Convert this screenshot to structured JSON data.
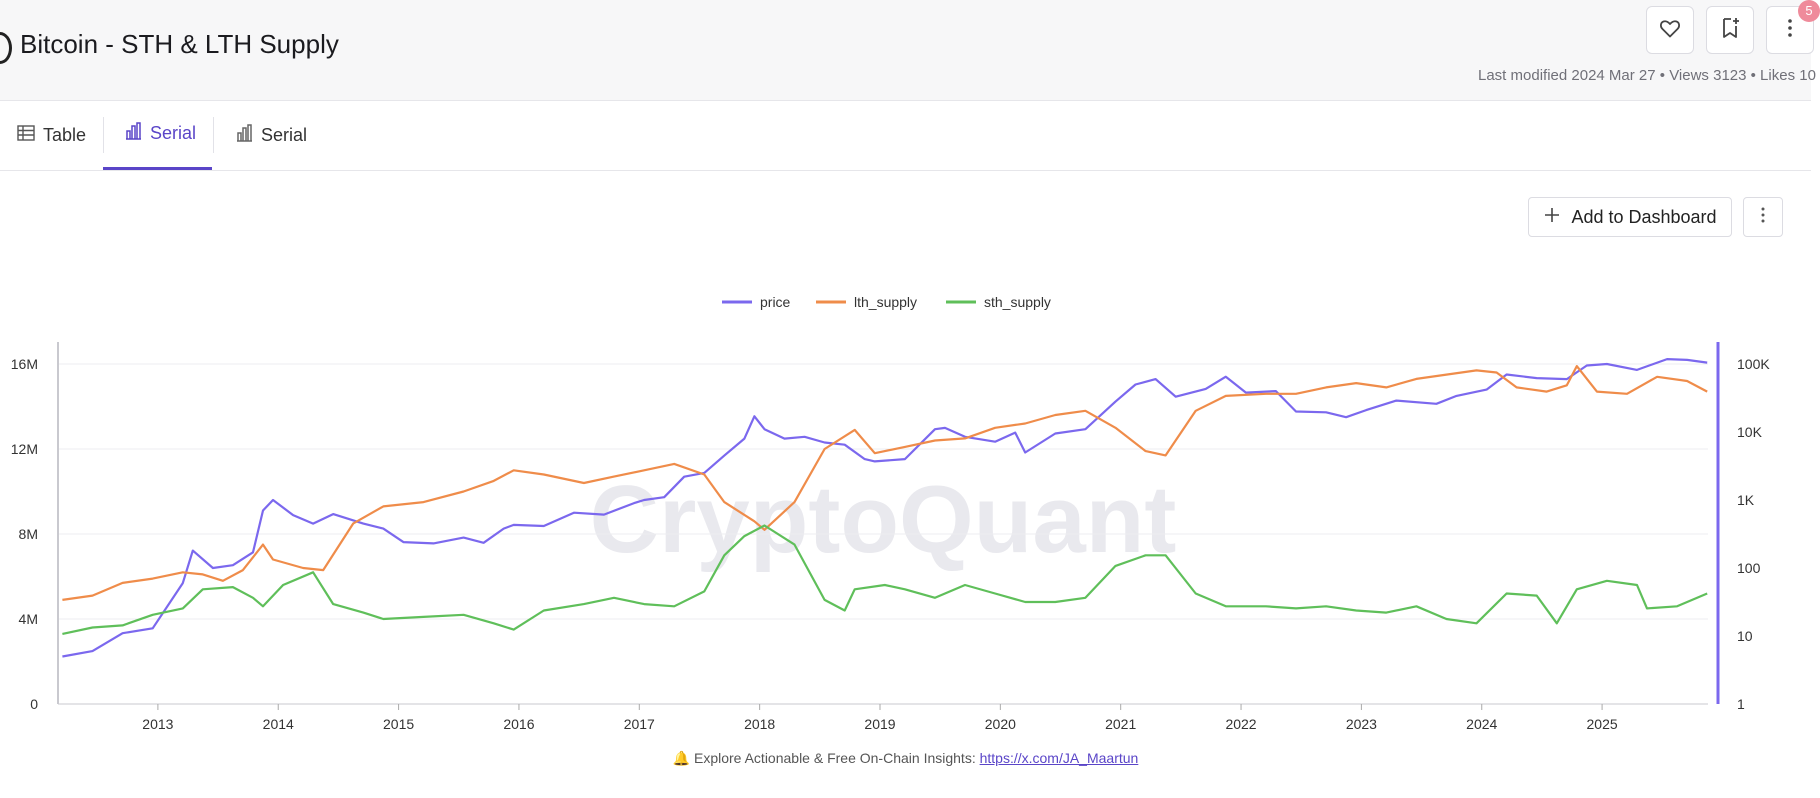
{
  "header": {
    "title": "Bitcoin - STH & LTH Supply",
    "meta": "Last modified 2024 Mar 27 • Views 3123 • Likes 10",
    "notification_count": "5",
    "icons": [
      "heart-icon",
      "bookmark-add-icon",
      "more-vertical-icon"
    ]
  },
  "tabs": [
    {
      "label": "Table",
      "icon": "table-icon",
      "active": false
    },
    {
      "label": "Serial",
      "icon": "bar-chart-icon",
      "active": true
    },
    {
      "label": "Serial",
      "icon": "bar-chart-icon",
      "active": false
    }
  ],
  "toolbar": {
    "add_label": "Add to Dashboard"
  },
  "footer": {
    "bell": "🔔",
    "text": "Explore Actionable & Free On-Chain Insights:",
    "link": "https://x.com/JA_Maartun"
  },
  "colors": {
    "price": "#7b68ee",
    "lth_supply": "#ef8c4a",
    "sth_supply": "#5fbf5a",
    "accent": "#5a45c8"
  },
  "chart_data": {
    "type": "line",
    "watermark": "CryptoQuant",
    "x_ticks": [
      "2013",
      "2014",
      "2015",
      "2016",
      "2017",
      "2018",
      "2019",
      "2020",
      "2021",
      "2022",
      "2023",
      "2024",
      "2025"
    ],
    "y_left": {
      "ticks": [
        "0",
        "4M",
        "8M",
        "12M",
        "16M"
      ],
      "range": [
        0,
        16000000
      ]
    },
    "y_right": {
      "ticks": [
        "1",
        "10",
        "100",
        "1K",
        "10K",
        "100K"
      ],
      "range": [
        1,
        100000
      ],
      "scale": "log"
    },
    "legend_position": "top-center",
    "grid": true,
    "series": [
      {
        "name": "price",
        "axis": "right",
        "points": [
          [
            "2012-03",
            5
          ],
          [
            "2012-06",
            6
          ],
          [
            "2012-09",
            11
          ],
          [
            "2012-12",
            13
          ],
          [
            "2013-03",
            60
          ],
          [
            "2013-04",
            180
          ],
          [
            "2013-06",
            100
          ],
          [
            "2013-08",
            110
          ],
          [
            "2013-10",
            170
          ],
          [
            "2013-11",
            700
          ],
          [
            "2013-12",
            1000
          ],
          [
            "2014-02",
            600
          ],
          [
            "2014-04",
            450
          ],
          [
            "2014-06",
            620
          ],
          [
            "2014-09",
            450
          ],
          [
            "2014-11",
            380
          ],
          [
            "2015-01",
            240
          ],
          [
            "2015-04",
            230
          ],
          [
            "2015-07",
            280
          ],
          [
            "2015-09",
            235
          ],
          [
            "2015-11",
            380
          ],
          [
            "2015-12",
            430
          ],
          [
            "2016-03",
            415
          ],
          [
            "2016-06",
            650
          ],
          [
            "2016-09",
            610
          ],
          [
            "2016-12",
            900
          ],
          [
            "2017-01",
            1000
          ],
          [
            "2017-03",
            1100
          ],
          [
            "2017-05",
            2200
          ],
          [
            "2017-07",
            2500
          ],
          [
            "2017-09",
            4500
          ],
          [
            "2017-11",
            8000
          ],
          [
            "2017-12",
            17000
          ],
          [
            "2018-01",
            11000
          ],
          [
            "2018-03",
            8000
          ],
          [
            "2018-05",
            8500
          ],
          [
            "2018-07",
            7000
          ],
          [
            "2018-09",
            6500
          ],
          [
            "2018-11",
            4000
          ],
          [
            "2018-12",
            3700
          ],
          [
            "2019-03",
            4000
          ],
          [
            "2019-06",
            11000
          ],
          [
            "2019-07",
            11500
          ],
          [
            "2019-09",
            8500
          ],
          [
            "2019-12",
            7200
          ],
          [
            "2020-02",
            9800
          ],
          [
            "2020-03",
            5000
          ],
          [
            "2020-06",
            9500
          ],
          [
            "2020-09",
            11000
          ],
          [
            "2020-12",
            28000
          ],
          [
            "2021-02",
            50000
          ],
          [
            "2021-04",
            60000
          ],
          [
            "2021-06",
            33000
          ],
          [
            "2021-09",
            43000
          ],
          [
            "2021-11",
            65000
          ],
          [
            "2022-01",
            38000
          ],
          [
            "2022-04",
            40000
          ],
          [
            "2022-06",
            20000
          ],
          [
            "2022-09",
            19500
          ],
          [
            "2022-11",
            16500
          ],
          [
            "2023-01",
            21000
          ],
          [
            "2023-04",
            29000
          ],
          [
            "2023-08",
            26000
          ],
          [
            "2023-10",
            34000
          ],
          [
            "2024-01",
            42000
          ],
          [
            "2024-03",
            70000
          ],
          [
            "2024-06",
            62000
          ],
          [
            "2024-09",
            60000
          ],
          [
            "2024-11",
            95000
          ],
          [
            "2025-01",
            100000
          ],
          [
            "2025-04",
            82000
          ],
          [
            "2025-07",
            118000
          ],
          [
            "2025-09",
            115000
          ],
          [
            "2025-11",
            105000
          ]
        ]
      },
      {
        "name": "lth_supply",
        "axis": "left",
        "points": [
          [
            "2012-03",
            4900000
          ],
          [
            "2012-06",
            5100000
          ],
          [
            "2012-09",
            5700000
          ],
          [
            "2012-12",
            5900000
          ],
          [
            "2013-03",
            6200000
          ],
          [
            "2013-05",
            6100000
          ],
          [
            "2013-07",
            5800000
          ],
          [
            "2013-09",
            6300000
          ],
          [
            "2013-11",
            7500000
          ],
          [
            "2013-12",
            6800000
          ],
          [
            "2014-03",
            6400000
          ],
          [
            "2014-05",
            6300000
          ],
          [
            "2014-08",
            8500000
          ],
          [
            "2014-11",
            9300000
          ],
          [
            "2015-03",
            9500000
          ],
          [
            "2015-07",
            10000000
          ],
          [
            "2015-10",
            10500000
          ],
          [
            "2015-12",
            11000000
          ],
          [
            "2016-03",
            10800000
          ],
          [
            "2016-07",
            10400000
          ],
          [
            "2016-10",
            10700000
          ],
          [
            "2017-01",
            11000000
          ],
          [
            "2017-04",
            11300000
          ],
          [
            "2017-07",
            10800000
          ],
          [
            "2017-09",
            9500000
          ],
          [
            "2017-12",
            8600000
          ],
          [
            "2018-01",
            8200000
          ],
          [
            "2018-04",
            9500000
          ],
          [
            "2018-07",
            12000000
          ],
          [
            "2018-10",
            12900000
          ],
          [
            "2018-12",
            11800000
          ],
          [
            "2019-03",
            12100000
          ],
          [
            "2019-06",
            12400000
          ],
          [
            "2019-09",
            12500000
          ],
          [
            "2019-12",
            13000000
          ],
          [
            "2020-03",
            13200000
          ],
          [
            "2020-06",
            13600000
          ],
          [
            "2020-09",
            13800000
          ],
          [
            "2020-12",
            13000000
          ],
          [
            "2021-03",
            11900000
          ],
          [
            "2021-05",
            11700000
          ],
          [
            "2021-08",
            13800000
          ],
          [
            "2021-11",
            14500000
          ],
          [
            "2022-03",
            14600000
          ],
          [
            "2022-06",
            14600000
          ],
          [
            "2022-09",
            14900000
          ],
          [
            "2022-12",
            15100000
          ],
          [
            "2023-03",
            14900000
          ],
          [
            "2023-06",
            15300000
          ],
          [
            "2023-09",
            15500000
          ],
          [
            "2023-12",
            15700000
          ],
          [
            "2024-02",
            15600000
          ],
          [
            "2024-04",
            14900000
          ],
          [
            "2024-07",
            14700000
          ],
          [
            "2024-09",
            15000000
          ],
          [
            "2024-10",
            15900000
          ],
          [
            "2024-12",
            14700000
          ],
          [
            "2025-03",
            14600000
          ],
          [
            "2025-06",
            15400000
          ],
          [
            "2025-09",
            15200000
          ],
          [
            "2025-11",
            14700000
          ]
        ]
      },
      {
        "name": "sth_supply",
        "axis": "left",
        "points": [
          [
            "2012-03",
            3300000
          ],
          [
            "2012-06",
            3600000
          ],
          [
            "2012-09",
            3700000
          ],
          [
            "2012-12",
            4200000
          ],
          [
            "2013-03",
            4500000
          ],
          [
            "2013-05",
            5400000
          ],
          [
            "2013-08",
            5500000
          ],
          [
            "2013-10",
            5000000
          ],
          [
            "2013-11",
            4600000
          ],
          [
            "2014-01",
            5600000
          ],
          [
            "2014-04",
            6200000
          ],
          [
            "2014-06",
            4700000
          ],
          [
            "2014-09",
            4300000
          ],
          [
            "2014-11",
            4000000
          ],
          [
            "2015-03",
            4100000
          ],
          [
            "2015-07",
            4200000
          ],
          [
            "2015-10",
            3800000
          ],
          [
            "2015-12",
            3500000
          ],
          [
            "2016-03",
            4400000
          ],
          [
            "2016-07",
            4700000
          ],
          [
            "2016-10",
            5000000
          ],
          [
            "2017-01",
            4700000
          ],
          [
            "2017-04",
            4600000
          ],
          [
            "2017-07",
            5300000
          ],
          [
            "2017-09",
            7000000
          ],
          [
            "2017-11",
            7900000
          ],
          [
            "2018-01",
            8400000
          ],
          [
            "2018-04",
            7500000
          ],
          [
            "2018-07",
            4900000
          ],
          [
            "2018-09",
            4400000
          ],
          [
            "2018-10",
            5400000
          ],
          [
            "2019-01",
            5600000
          ],
          [
            "2019-03",
            5400000
          ],
          [
            "2019-06",
            5000000
          ],
          [
            "2019-09",
            5600000
          ],
          [
            "2019-12",
            5200000
          ],
          [
            "2020-03",
            4800000
          ],
          [
            "2020-06",
            4800000
          ],
          [
            "2020-09",
            5000000
          ],
          [
            "2020-12",
            6500000
          ],
          [
            "2021-03",
            7000000
          ],
          [
            "2021-05",
            7000000
          ],
          [
            "2021-08",
            5200000
          ],
          [
            "2021-11",
            4600000
          ],
          [
            "2022-03",
            4600000
          ],
          [
            "2022-06",
            4500000
          ],
          [
            "2022-09",
            4600000
          ],
          [
            "2022-12",
            4400000
          ],
          [
            "2023-03",
            4300000
          ],
          [
            "2023-06",
            4600000
          ],
          [
            "2023-09",
            4000000
          ],
          [
            "2023-12",
            3800000
          ],
          [
            "2024-03",
            5200000
          ],
          [
            "2024-06",
            5100000
          ],
          [
            "2024-08",
            3800000
          ],
          [
            "2024-10",
            5400000
          ],
          [
            "2025-01",
            5800000
          ],
          [
            "2025-04",
            5600000
          ],
          [
            "2025-05",
            4500000
          ],
          [
            "2025-08",
            4600000
          ],
          [
            "2025-11",
            5200000
          ]
        ]
      }
    ]
  }
}
